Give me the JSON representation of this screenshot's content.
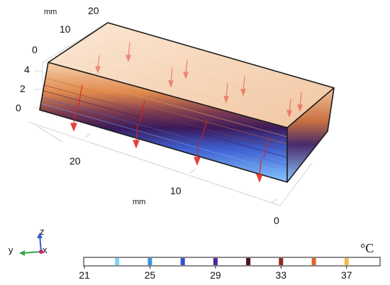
{
  "axis_labels": {
    "unit_top": "mm",
    "unit_bottom": "mm",
    "top_ticks": [
      "0",
      "10",
      "20"
    ],
    "vertical_ticks": [
      "0",
      "2",
      "4"
    ],
    "left_ticks": [
      "20"
    ],
    "bottom_ticks": [
      "10",
      "0"
    ]
  },
  "triad": {
    "z": "z",
    "y": "y",
    "x": "x"
  },
  "legend": {
    "unit": "°C",
    "ticks": [
      "21",
      "25",
      "29",
      "33",
      "37"
    ],
    "min": 21,
    "max": 39,
    "isotherms": [
      {
        "value": 23,
        "color": "#7fd3f0"
      },
      {
        "value": 25,
        "color": "#3c8fe6"
      },
      {
        "value": 27,
        "color": "#2f4fd0"
      },
      {
        "value": 29,
        "color": "#4a2a9a"
      },
      {
        "value": 31,
        "color": "#4a1020"
      },
      {
        "value": 33,
        "color": "#8a2c1c"
      },
      {
        "value": 35,
        "color": "#d9662a"
      },
      {
        "value": 37,
        "color": "#f2b84a"
      }
    ]
  },
  "colors": {
    "cold": "#6fb6ff",
    "mid_blue": "#3f51c8",
    "dark": "#3a1638",
    "warm": "#c8683a",
    "hot": "#f6d4b2",
    "arrow": "#e0201a"
  }
}
